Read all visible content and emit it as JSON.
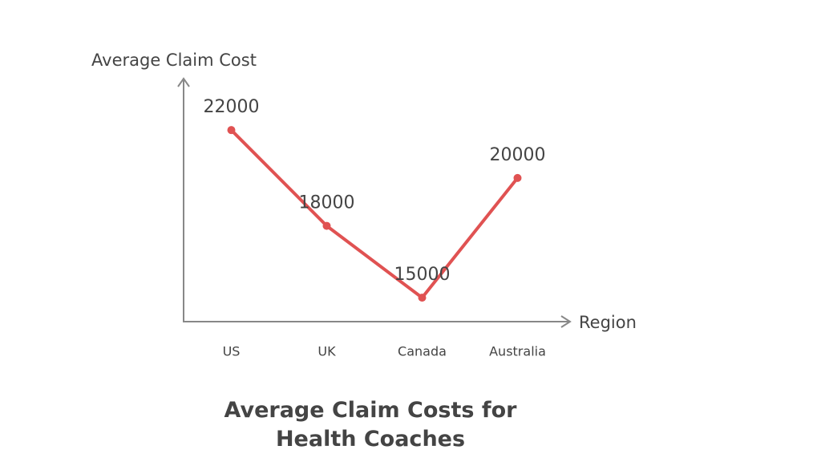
{
  "chart_data": {
    "type": "line",
    "title": "Average Claim Costs for\nHealth Coaches",
    "x_label": "Region",
    "y_label": "Average Claim Cost",
    "categories": [
      "US",
      "UK",
      "Canada",
      "Australia"
    ],
    "values": [
      22000,
      18000,
      15000,
      20000
    ],
    "color": "#e05252",
    "ylim": [
      14000,
      24150
    ]
  }
}
